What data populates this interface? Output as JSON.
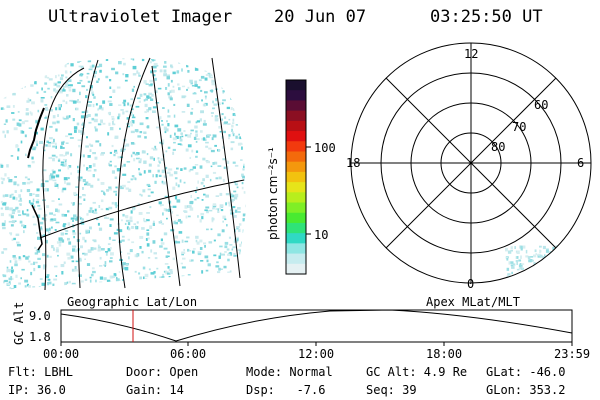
{
  "header": {
    "instrument": "Ultraviolet Imager",
    "date": "20 Jun 07",
    "time": "03:25:50 UT"
  },
  "colorbar": {
    "unit_label": "photon cm⁻²s⁻¹",
    "ticks": [
      "100",
      "10"
    ],
    "colors_top_to_bottom": [
      "#1a0f2e",
      "#2c0d3e",
      "#5a0d34",
      "#8b0f22",
      "#b80f14",
      "#e01010",
      "#f23a0e",
      "#f36a0c",
      "#f4980d",
      "#f2c20f",
      "#e6e41a",
      "#b8ee1d",
      "#7fef26",
      "#49ea31",
      "#2fe378",
      "#30d9c4",
      "#8ee6e3",
      "#c6ecef",
      "#e5f1f3"
    ]
  },
  "polar": {
    "ring_labels": [
      "60",
      "70",
      "80"
    ],
    "clock_labels": {
      "top": "12",
      "left": "18",
      "right": "6",
      "bottom": "0"
    }
  },
  "map": {
    "caption_left": "Geographic Lat/Lon",
    "caption_right": "Apex MLat/MLT"
  },
  "altitude_plot": {
    "ylabel": "GC Alt",
    "yticks": [
      "9.0",
      "1.8"
    ],
    "xticks": [
      "00:00",
      "06:00",
      "12:00",
      "18:00",
      "23:59"
    ]
  },
  "info": {
    "row1": {
      "flt": "Flt: LBHL",
      "door": "Door: Open",
      "mode": "Mode: Normal",
      "gcalt": "GC Alt: 4.9 Re",
      "glat": "GLat: -46.0"
    },
    "row2": {
      "ip": "IP: 36.0",
      "gain": "Gain: 14",
      "dsp": "Dsp:   -7.6",
      "seq": "Seq: 39",
      "glon": "GLon: 353.2"
    }
  },
  "colors": {
    "aurora_speckle": "#8fd9e0",
    "time_marker": "#d01010"
  }
}
